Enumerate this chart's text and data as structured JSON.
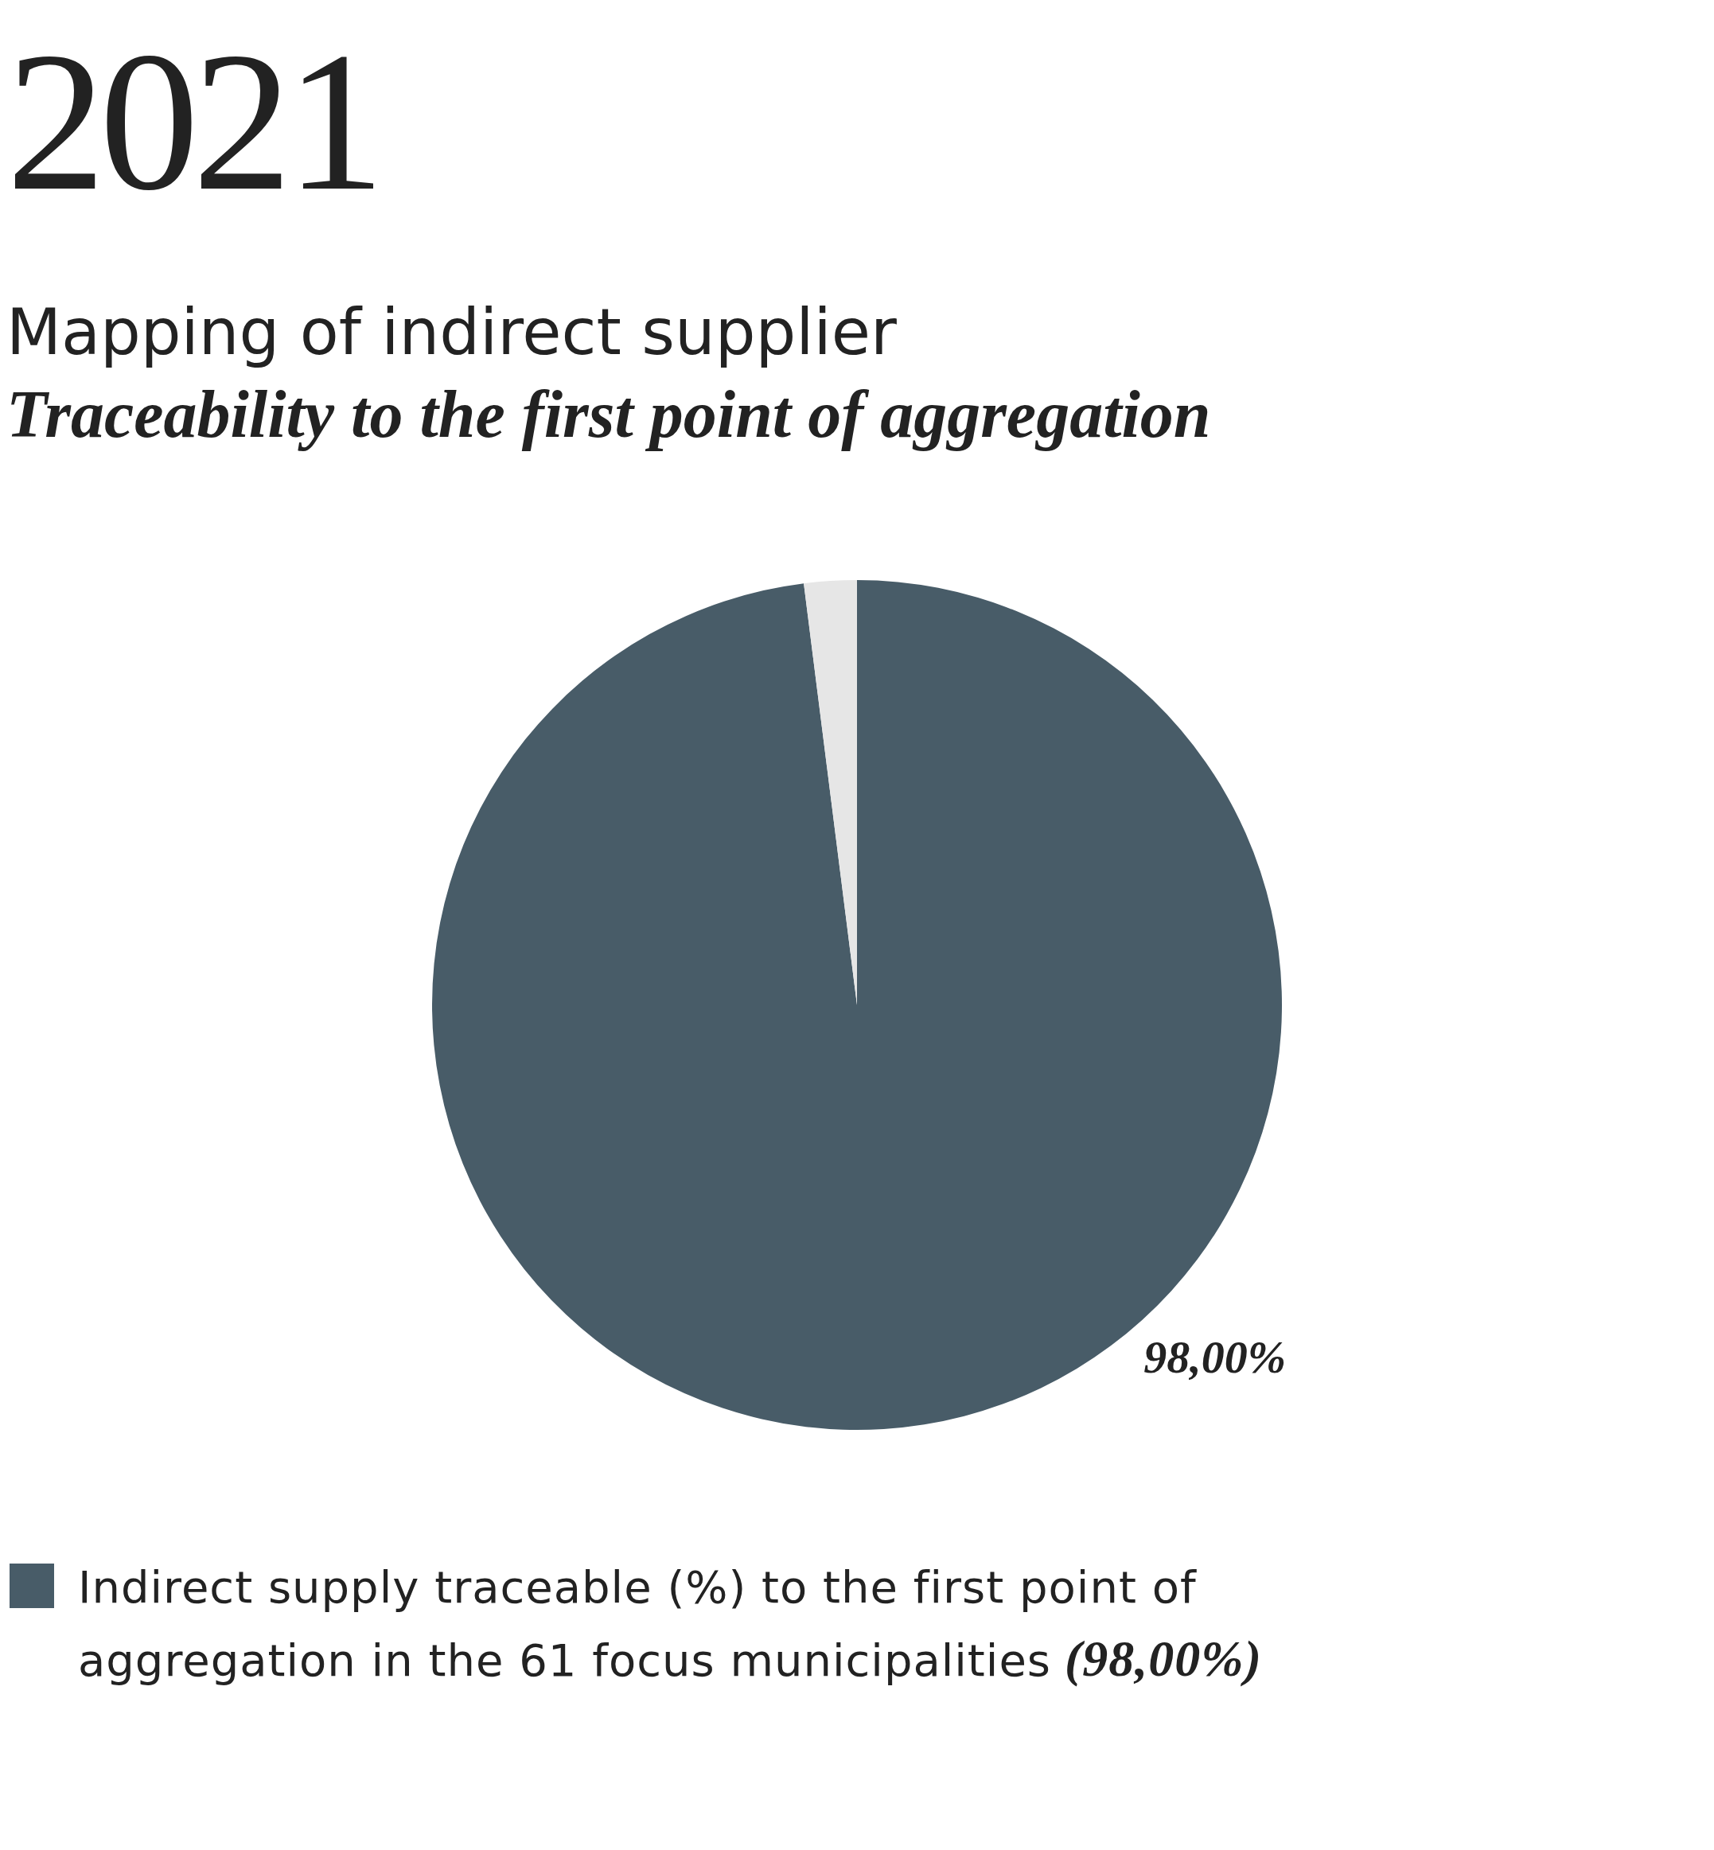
{
  "chart_data": {
    "type": "pie",
    "title": "2021",
    "subtitle": "Mapping of indirect supplier\nTraceability to the first point of aggregation",
    "categories": [
      "Indirect supply traceable (%) to the first point of aggregation in the 61 focus municipalities (98,00%)",
      null
    ],
    "values": [
      98,
      2
    ],
    "colors": [
      "#485c68",
      "#e6e6e6"
    ],
    "value_labels": [
      "98,00%",
      null
    ],
    "legend": "bottom left"
  }
}
